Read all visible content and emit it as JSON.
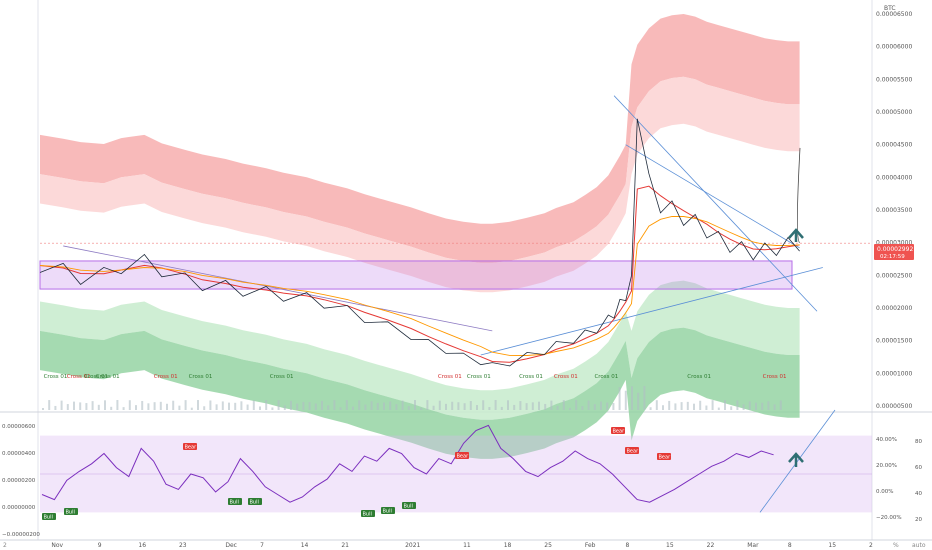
{
  "chart_data": [
    {
      "type": "line",
      "title": "",
      "currency": "BTC",
      "y_ticks": [
        "0.00006500",
        "0.00006000",
        "0.00005500",
        "0.00005000",
        "0.00004500",
        "0.00004000",
        "0.00003500",
        "0.00003000",
        "0.00002500",
        "0.00002000",
        "0.00001500",
        "0.00001000",
        "0.00000500"
      ],
      "x_ticks": [
        "Nov",
        "9",
        "16",
        "23",
        "Dec",
        "7",
        "14",
        "21",
        "2021",
        "11",
        "18",
        "25",
        "Feb",
        "8",
        "15",
        "22",
        "Mar",
        "8",
        "15",
        "2"
      ],
      "price_label": "0.00002992",
      "countdown_label": "02:17:59",
      "ylim": [
        4.5e-06,
        6.65e-05
      ],
      "series": [
        {
          "name": "",
          "values": [
            2.65e-05,
            2.58e-05,
            2.46e-05,
            2.52e-05,
            2.63e-05,
            2.71e-05,
            2.58e-05,
            2.44e-05,
            2.36e-05,
            2.33e-05,
            2.27e-05,
            2.24e-05,
            2.19e-05,
            2.15e-05,
            2.08e-05,
            1.96e-05,
            1.85e-05,
            1.72e-05,
            1.58e-05,
            1.46e-05,
            1.36e-05,
            1.26e-05,
            1.18e-05,
            1.12e-05,
            1.16e-05,
            1.27e-05,
            1.34e-05,
            1.43e-05,
            1.52e-05,
            1.6e-05,
            1.68e-05,
            1.82e-05,
            1.92e-05,
            2.05e-05,
            2.2e-05,
            2.4e-05,
            5.1e-05,
            3.9e-05,
            3.6e-05,
            3.5e-05,
            3.4e-05,
            3.3e-05,
            3.2e-05,
            3.05e-05,
            2.97e-05,
            2.9e-05,
            2.85e-05,
            2.88e-05,
            2.92e-05,
            2.96e-05,
            2.99e-05
          ]
        }
      ],
      "dates": [
        "2020-10-29",
        "2020-11-02",
        "2020-11-05",
        "2020-11-09",
        "2020-11-12",
        "2020-11-16",
        "2020-11-19",
        "2020-11-23",
        "2020-11-26",
        "2020-11-30",
        "2020-12-03",
        "2020-12-07",
        "2020-12-10",
        "2020-12-14",
        "2020-12-17",
        "2020-12-21",
        "2020-12-24",
        "2020-12-28",
        "2021-01-01",
        "2021-01-04",
        "2021-01-07",
        "2021-01-10",
        "2021-01-13",
        "2021-01-15",
        "2021-01-18",
        "2021-01-21",
        "2021-01-24",
        "2021-01-26",
        "2021-01-29",
        "2021-01-31",
        "2021-02-02",
        "2021-02-04",
        "2021-02-05",
        "2021-02-06",
        "2021-02-07",
        "2021-02-08",
        "2021-02-09",
        "2021-02-11",
        "2021-02-13",
        "2021-02-15",
        "2021-02-17",
        "2021-02-19",
        "2021-02-21",
        "2021-02-23",
        "2021-02-25",
        "2021-02-27",
        "2021-03-01",
        "2021-03-03",
        "2021-03-05",
        "2021-03-07",
        "2021-03-09"
      ],
      "annotations": [
        "Cross 01",
        "Cross 01",
        "Cross 01",
        "Cross 01",
        "Cross 01",
        "Cross 01",
        "Cross 01",
        "Cross 01",
        "Cross 01",
        "Cross 01",
        "Cross 01",
        "Cross 01",
        "Cross 01",
        "Cross 01"
      ],
      "grid": false,
      "colors": {
        "price": "#1e2a3a",
        "ema_red": "#e53935",
        "ema_orange": "#ff9800",
        "upper_band": "#f8a9a9",
        "lower_band": "#8fd19e",
        "support_zone": "#b66ee8",
        "trend_line": "#5b8fd6",
        "arrow": "#2f6f73",
        "price_line": "#f08080",
        "price_badge": "#ef5350"
      }
    },
    {
      "type": "line",
      "title": "",
      "y_ticks_left": [
        "0.00000600",
        "0.00000400",
        "0.00000200",
        "0.00000000",
        "−0.00000200"
      ],
      "y_ticks_right_pct": [
        "40.00%",
        "20.00%",
        "0.00%",
        "−20.00%"
      ],
      "y_ticks_right": [
        "80",
        "60",
        "40",
        "20"
      ],
      "series": [
        {
          "name": "",
          "values": [
            34,
            30,
            45,
            52,
            58,
            66,
            55,
            48,
            70,
            60,
            42,
            38,
            50,
            47,
            36,
            44,
            62,
            52,
            40,
            34,
            28,
            32,
            40,
            46,
            58,
            52,
            64,
            60,
            70,
            66,
            55,
            50,
            62,
            58,
            74,
            84,
            88,
            70,
            62,
            52,
            48,
            55,
            60,
            68,
            62,
            58,
            50,
            40,
            30,
            28,
            33,
            38,
            44,
            50,
            56,
            60,
            66,
            63,
            68,
            65
          ]
        }
      ],
      "signals": [
        "Bear",
        "Bear",
        "Bear",
        "Bear",
        "Bear",
        "Bull",
        "Bull",
        "Bull",
        "Bull",
        "Bull",
        "Bull",
        "Bull"
      ],
      "colors": {
        "rsi": "#7b2fbe",
        "band": "#d9b8f0",
        "signal_red": "#e53935",
        "signal_green": "#2e7d32"
      }
    }
  ],
  "timeframe_tag": "2"
}
